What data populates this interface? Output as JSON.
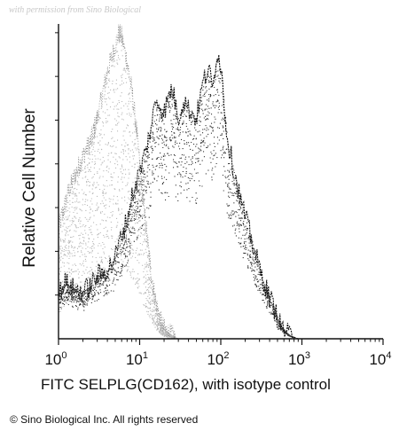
{
  "watermark": "with permission from Sino Biological",
  "copyright": "© Sino Biological Inc. All rights reserved",
  "chart_data": {
    "type": "area",
    "title": "",
    "xlabel": "FITC SELPLG(CD162), with isotype control",
    "ylabel": "Relative Cell Number",
    "x_scale": "log",
    "xlim": [
      1,
      10000
    ],
    "ylim": [
      0,
      100
    ],
    "x_ticks": [
      {
        "value": 1,
        "base": "10",
        "exp": "0"
      },
      {
        "value": 10,
        "base": "10",
        "exp": "1"
      },
      {
        "value": 100,
        "base": "10",
        "exp": "2"
      },
      {
        "value": 1000,
        "base": "10",
        "exp": "3"
      },
      {
        "value": 10000,
        "base": "10",
        "exp": "4"
      }
    ],
    "grid": false,
    "legend": "none",
    "series": [
      {
        "style": "light-stipple",
        "color": "#8a8a8a",
        "x": [
          1,
          1.3,
          1.6,
          2,
          2.5,
          3,
          3.5,
          4,
          4.5,
          5,
          5.5,
          6,
          7,
          8,
          9,
          10,
          11,
          12.5,
          14,
          16,
          18,
          20,
          25,
          30
        ],
        "y": [
          35,
          46,
          52,
          58,
          63,
          70,
          78,
          85,
          89,
          93,
          97,
          96,
          88,
          79,
          68,
          56,
          44,
          31,
          20,
          11,
          6,
          3,
          1,
          0
        ]
      },
      {
        "style": "dark-stipple",
        "color": "#111111",
        "x": [
          1,
          1.2,
          1.5,
          2,
          2.5,
          3,
          4,
          5,
          6,
          7,
          8,
          10,
          12,
          14,
          16,
          20,
          25,
          30,
          35,
          40,
          50,
          60,
          70,
          80,
          90,
          100,
          120,
          150,
          180,
          220,
          280,
          350,
          450,
          550,
          700,
          900,
          1200,
          2000,
          5000,
          10000
        ],
        "y": [
          14,
          18,
          16,
          15,
          17,
          20,
          22,
          26,
          33,
          38,
          45,
          53,
          60,
          68,
          76,
          72,
          80,
          70,
          76,
          73,
          70,
          81,
          86,
          79,
          92,
          87,
          64,
          52,
          43,
          35,
          25,
          17,
          10,
          4,
          1,
          0,
          0,
          0,
          0,
          0
        ]
      }
    ]
  }
}
